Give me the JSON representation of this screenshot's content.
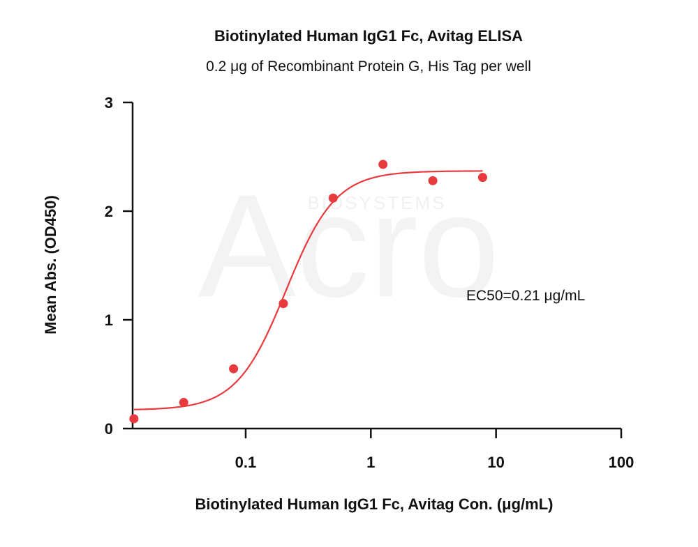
{
  "watermark": {
    "brand": "Acro",
    "sub": "BIOSYSTEMS"
  },
  "chart_data": {
    "type": "scatter",
    "title": "Biotinylated Human IgG1 Fc, Avitag ELISA",
    "subtitle": "0.2 μg of Recombinant Protein G, His Tag per well",
    "xlabel": "Biotinylated Human IgG1 Fc, Avitag Con. (μg/mL)",
    "ylabel": "Mean Abs. (OD450)",
    "x_scale": "log",
    "xlim": [
      0.0125,
      100
    ],
    "ylim": [
      0,
      3
    ],
    "x_ticks": [
      0.1,
      1,
      10,
      100
    ],
    "x_tick_labels": [
      "0.1",
      "1",
      "10",
      "100"
    ],
    "y_ticks": [
      0,
      1,
      2,
      3
    ],
    "y_tick_labels": [
      "0",
      "1",
      "2",
      "3"
    ],
    "series": [
      {
        "x": [
          0.0128,
          0.032,
          0.08,
          0.2,
          0.5,
          1.25,
          3.125,
          7.8125
        ],
        "y": [
          0.09,
          0.24,
          0.55,
          1.15,
          2.12,
          2.43,
          2.28,
          2.31
        ]
      }
    ],
    "fit": {
      "bottom": 0.17,
      "top": 2.37,
      "ec50": 0.21,
      "hill": 2.2
    },
    "annotation": "EC50=0.21 μg/mL",
    "colors": {
      "points": "#e8393d",
      "curve": "#e8393d",
      "axes": "#111111"
    },
    "grid": false,
    "legend": "none"
  }
}
